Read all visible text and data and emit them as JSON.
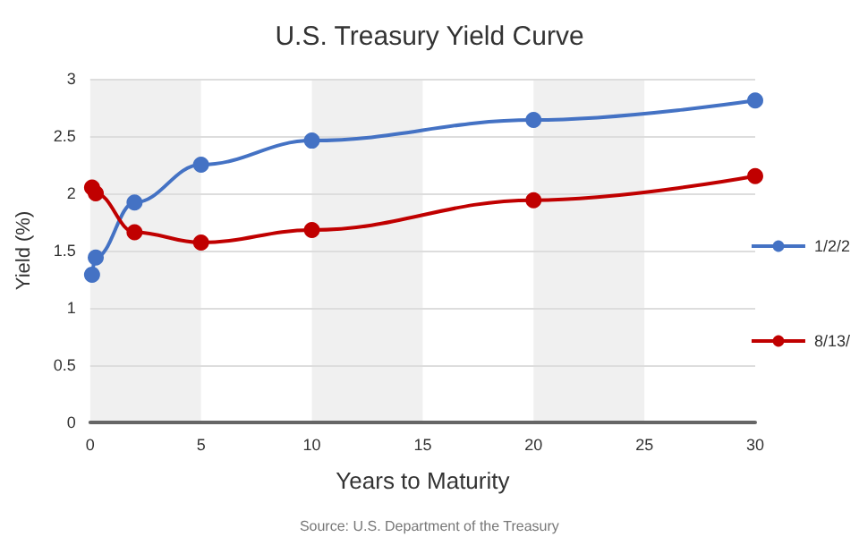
{
  "chart_data": {
    "type": "line",
    "title": "U.S. Treasury Yield Curve",
    "xlabel": "Years to Maturity",
    "ylabel": "Yield (%)",
    "annotations": [
      "Source: U.S. Department of the Treasury"
    ],
    "series": [
      {
        "name": "1/2/2",
        "color": "#4472c4",
        "x": [
          0.083,
          0.25,
          2,
          5,
          10,
          20,
          30
        ],
        "values": [
          1.29,
          1.44,
          1.92,
          2.25,
          2.46,
          2.64,
          2.81
        ]
      },
      {
        "name": "8/13/",
        "color": "#c00000",
        "x": [
          0.083,
          0.25,
          2,
          5,
          10,
          20,
          30
        ],
        "values": [
          2.05,
          2.0,
          1.66,
          1.57,
          1.68,
          1.94,
          2.15
        ]
      }
    ],
    "bands": [
      {
        "axis": "x",
        "from": 0,
        "to": 5,
        "color": "#f0f0f0"
      },
      {
        "axis": "x",
        "from": 10,
        "to": 15,
        "color": "#f0f0f0"
      },
      {
        "axis": "x",
        "from": 20,
        "to": 25,
        "color": "#f0f0f0"
      }
    ],
    "xlim": [
      0,
      30
    ],
    "xticks": [
      0,
      5,
      10,
      15,
      20,
      25,
      30
    ],
    "ylim": [
      0,
      3
    ],
    "yticks": [
      0,
      0.5,
      1,
      1.5,
      2,
      2.5,
      3
    ],
    "grid": "y",
    "legend": "right",
    "marker": "circle",
    "line_style": "solid"
  }
}
